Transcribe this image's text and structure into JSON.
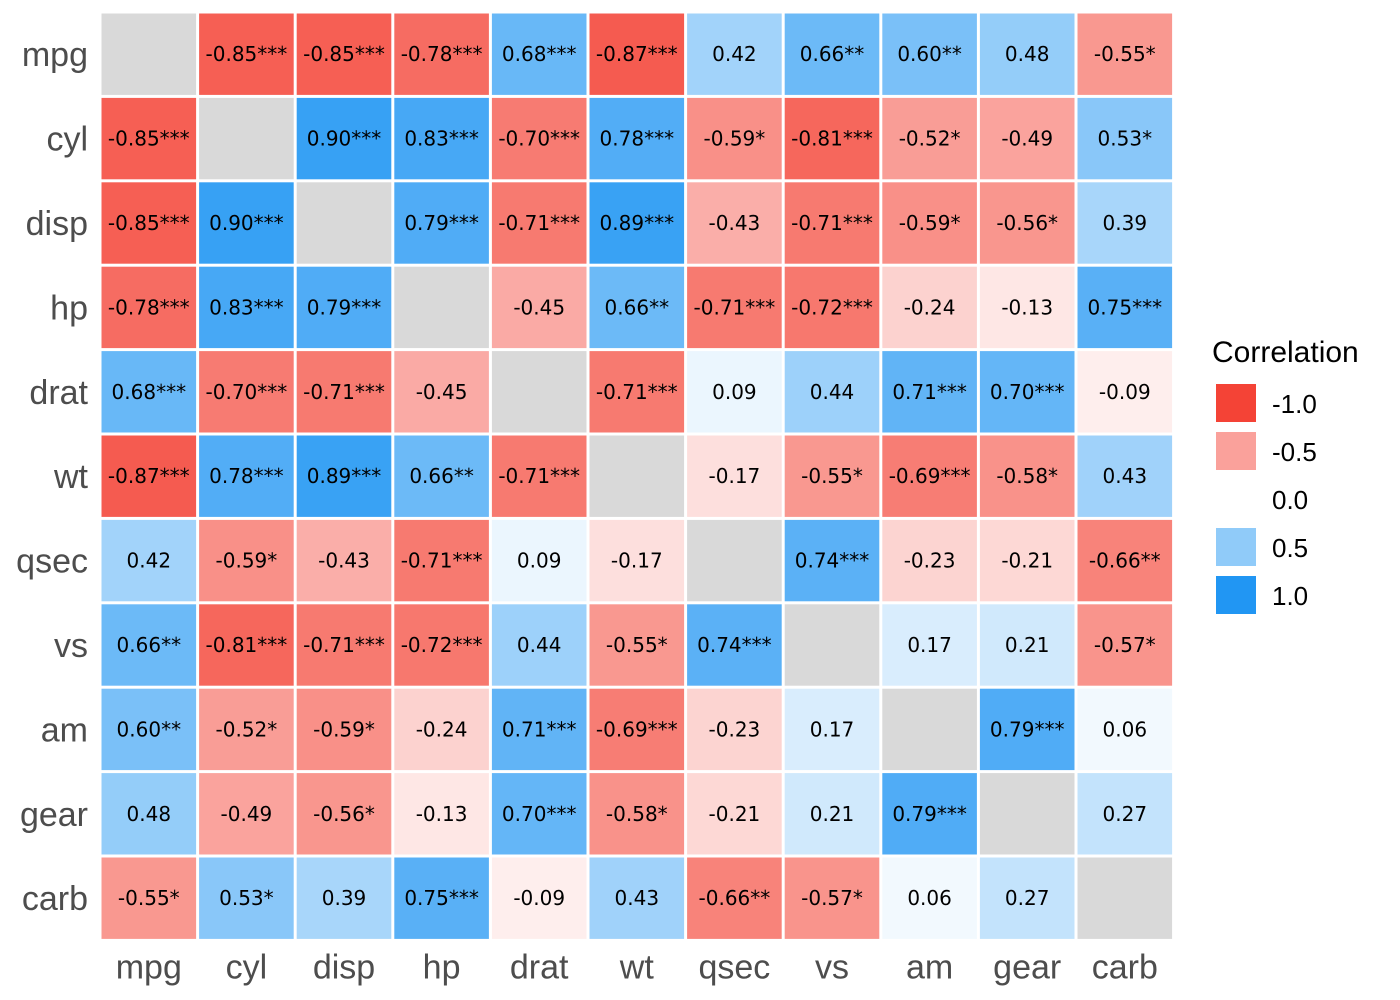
{
  "chart_data": {
    "type": "heatmap",
    "title": "",
    "xlabel": "",
    "ylabel": "",
    "variables": [
      "mpg",
      "cyl",
      "disp",
      "hp",
      "drat",
      "wt",
      "qsec",
      "vs",
      "am",
      "gear",
      "carb"
    ],
    "values": [
      [
        null,
        -0.85,
        -0.85,
        -0.78,
        0.68,
        -0.87,
        0.42,
        0.66,
        0.6,
        0.48,
        -0.55
      ],
      [
        -0.85,
        null,
        0.9,
        0.83,
        -0.7,
        0.78,
        -0.59,
        -0.81,
        -0.52,
        -0.49,
        0.53
      ],
      [
        -0.85,
        0.9,
        null,
        0.79,
        -0.71,
        0.89,
        -0.43,
        -0.71,
        -0.59,
        -0.56,
        0.39
      ],
      [
        -0.78,
        0.83,
        0.79,
        null,
        -0.45,
        0.66,
        -0.71,
        -0.72,
        -0.24,
        -0.13,
        0.75
      ],
      [
        0.68,
        -0.7,
        -0.71,
        -0.45,
        null,
        -0.71,
        0.09,
        0.44,
        0.71,
        0.7,
        -0.09
      ],
      [
        -0.87,
        0.78,
        0.89,
        0.66,
        -0.71,
        null,
        -0.17,
        -0.55,
        -0.69,
        -0.58,
        0.43
      ],
      [
        0.42,
        -0.59,
        -0.43,
        -0.71,
        0.09,
        -0.17,
        null,
        0.74,
        -0.23,
        -0.21,
        -0.66
      ],
      [
        0.66,
        -0.81,
        -0.71,
        -0.72,
        0.44,
        -0.55,
        0.74,
        null,
        0.17,
        0.21,
        -0.57
      ],
      [
        0.6,
        -0.52,
        -0.59,
        -0.24,
        0.71,
        -0.69,
        -0.23,
        0.17,
        null,
        0.79,
        0.06
      ],
      [
        0.48,
        -0.49,
        -0.56,
        -0.13,
        0.7,
        -0.58,
        -0.21,
        0.21,
        0.79,
        null,
        0.27
      ],
      [
        -0.55,
        0.53,
        0.39,
        0.75,
        -0.09,
        0.43,
        -0.66,
        -0.57,
        0.06,
        0.27,
        null
      ]
    ],
    "labels": [
      [
        "",
        "-0.85***",
        "-0.85***",
        "-0.78***",
        "0.68***",
        "-0.87***",
        "0.42",
        "0.66**",
        "0.60**",
        "0.48",
        "-0.55*"
      ],
      [
        "-0.85***",
        "",
        "0.90***",
        "0.83***",
        "-0.70***",
        "0.78***",
        "-0.59*",
        "-0.81***",
        "-0.52*",
        "-0.49",
        "0.53*"
      ],
      [
        "-0.85***",
        "0.90***",
        "",
        "0.79***",
        "-0.71***",
        "0.89***",
        "-0.43",
        "-0.71***",
        "-0.59*",
        "-0.56*",
        "0.39"
      ],
      [
        "-0.78***",
        "0.83***",
        "0.79***",
        "",
        "-0.45",
        "0.66**",
        "-0.71***",
        "-0.72***",
        "-0.24",
        "-0.13",
        "0.75***"
      ],
      [
        "0.68***",
        "-0.70***",
        "-0.71***",
        "-0.45",
        "",
        "-0.71***",
        "0.09",
        "0.44",
        "0.71***",
        "0.70***",
        "-0.09"
      ],
      [
        "-0.87***",
        "0.78***",
        "0.89***",
        "0.66**",
        "-0.71***",
        "",
        "-0.17",
        "-0.55*",
        "-0.69***",
        "-0.58*",
        "0.43"
      ],
      [
        "0.42",
        "-0.59*",
        "-0.43",
        "-0.71***",
        "0.09",
        "-0.17",
        "",
        "0.74***",
        "-0.23",
        "-0.21",
        "-0.66**"
      ],
      [
        "0.66**",
        "-0.81***",
        "-0.71***",
        "-0.72***",
        "0.44",
        "-0.55*",
        "0.74***",
        "",
        "0.17",
        "0.21",
        "-0.57*"
      ],
      [
        "0.60**",
        "-0.52*",
        "-0.59*",
        "-0.24",
        "0.71***",
        "-0.69***",
        "-0.23",
        "0.17",
        "",
        "0.79***",
        "0.06"
      ],
      [
        "0.48",
        "-0.49",
        "-0.56*",
        "-0.13",
        "0.70***",
        "-0.58*",
        "-0.21",
        "0.21",
        "0.79***",
        "",
        "0.27"
      ],
      [
        "-0.55*",
        "0.53*",
        "0.39",
        "0.75***",
        "-0.09",
        "0.43",
        "-0.66**",
        "-0.57*",
        "0.06",
        "0.27",
        ""
      ]
    ],
    "legend": {
      "title": "Correlation",
      "placement": "right",
      "entries": [
        {
          "label": "-1.0",
          "value": -1.0
        },
        {
          "label": "-0.5",
          "value": -0.5
        },
        {
          "label": "0.0",
          "value": 0.0
        },
        {
          "label": "0.5",
          "value": 0.5
        },
        {
          "label": "1.0",
          "value": 1.0
        }
      ]
    },
    "colors": {
      "negative": "#F44336",
      "zero": "#FFFFFF",
      "positive": "#2196F3",
      "diagonal": "#D9D9D9",
      "cell_border": "#FFFFFF"
    },
    "scale_range": [
      -1,
      1
    ],
    "grid": false
  }
}
